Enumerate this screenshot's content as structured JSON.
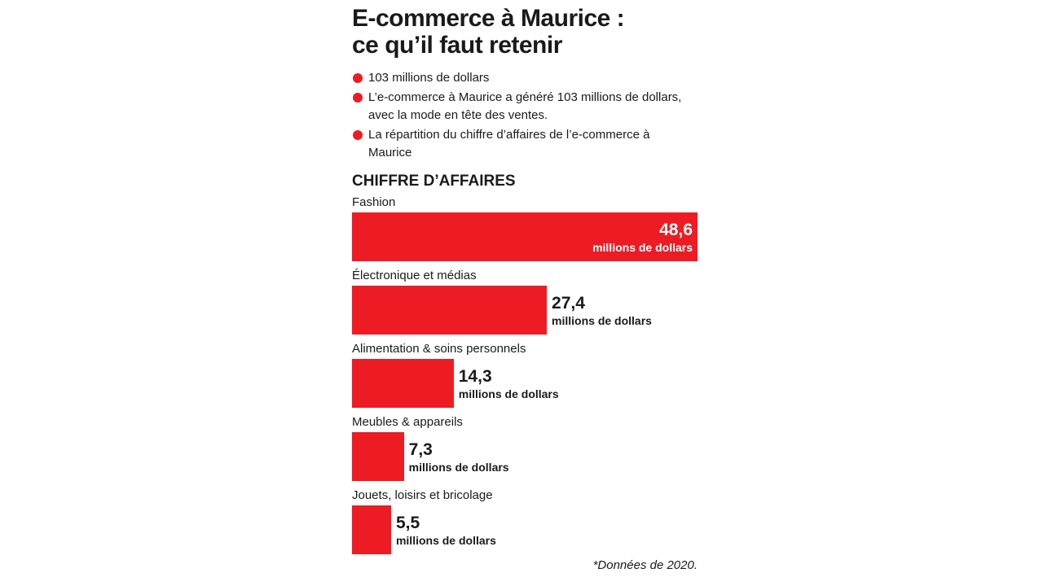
{
  "header": {
    "title": "E-commerce à Maurice : ce qu’il faut retenir",
    "bullets": [
      "103 millions de dollars",
      "L’e-commerce à Maurice a généré 103 millions de dollars, avec la mode en tête des ventes.",
      "La répartition du chiffre d’affaires de l’e-commerce à Maurice"
    ]
  },
  "chart_data": {
    "type": "bar",
    "orientation": "horizontal",
    "title": "CHIFFRE D’AFFAIRES",
    "categories": [
      "Fashion",
      "Électronique et médias",
      "Alimentation & soins personnels",
      "Meubles & appareils",
      "Jouets, loisirs et bricolage"
    ],
    "values": [
      48.6,
      27.4,
      14.3,
      7.3,
      5.5
    ],
    "value_labels": [
      "48,6",
      "27,4",
      "14,3",
      "7,3",
      "5,5"
    ],
    "unit": "millions de dollars",
    "color": "#ed1c24",
    "note": "*Données de 2020."
  }
}
